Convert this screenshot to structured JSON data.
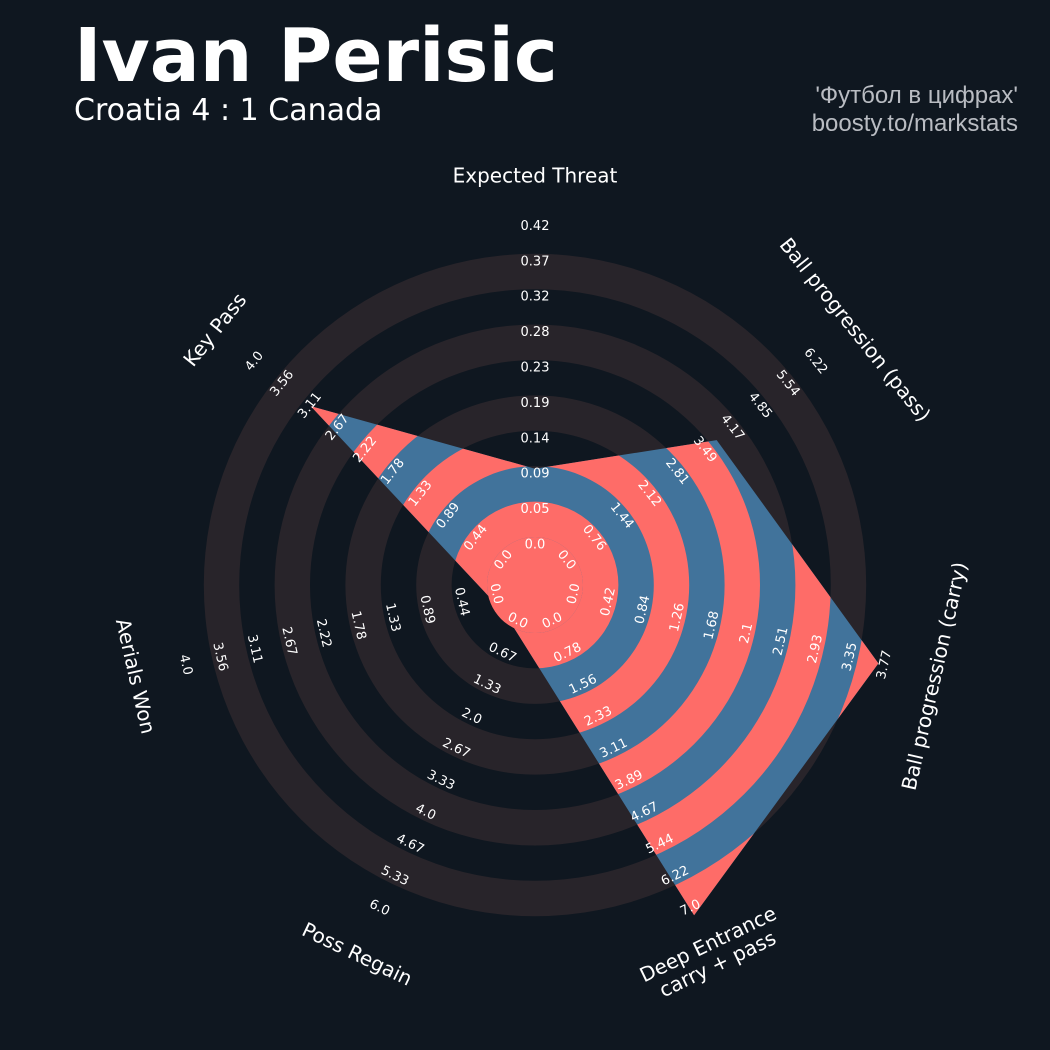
{
  "header": {
    "title": "Ivan Perisic",
    "subtitle": "Croatia 4 : 1 Canada",
    "credit_line1": "'Футбол в цифрах'",
    "credit_line2": "boosty.to/markstats"
  },
  "colors": {
    "background": "#0f1720",
    "ring_band": "#28242a",
    "player_fill": "#41739b",
    "player_band": "#fe6c68",
    "center": "#fe6c68",
    "text": "#ffffff",
    "credit": "#b9bcc2"
  },
  "chart_data": {
    "type": "radar",
    "title": "Ivan Perisic",
    "subtitle": "Croatia 4 : 1 Canada",
    "params": [
      {
        "name": "Expected Threat",
        "ticks": [
          "0.0",
          "0.05",
          "0.09",
          "0.14",
          "0.19",
          "0.23",
          "0.28",
          "0.32",
          "0.37",
          "0.42"
        ],
        "min": 0.0,
        "max": 0.42,
        "value": 0.09
      },
      {
        "name": "Ball progression (pass)",
        "ticks": [
          "0.0",
          "0.76",
          "1.44",
          "2.12",
          "2.81",
          "3.49",
          "4.17",
          "4.85",
          "5.54",
          "6.22"
        ],
        "min": 0.0,
        "max": 6.22,
        "value": 3.6
      },
      {
        "name": "Ball progression (carry)",
        "ticks": [
          "0.0",
          "0.42",
          "0.84",
          "1.26",
          "1.68",
          "2.1",
          "2.51",
          "2.93",
          "3.35",
          "3.77"
        ],
        "min": 0.0,
        "max": 3.77,
        "value": 3.6
      },
      {
        "name": "Deep Entrance\ncarry + pass",
        "ticks": [
          "0.0",
          "0.78",
          "1.56",
          "2.33",
          "3.11",
          "3.89",
          "4.67",
          "5.44",
          "6.22",
          "7.0"
        ],
        "min": 0.0,
        "max": 7.0,
        "value": 7.0
      },
      {
        "name": "Poss Regain",
        "ticks": [
          "0.0",
          "0.67",
          "1.33",
          "2.0",
          "2.67",
          "3.33",
          "4.0",
          "4.67",
          "5.33",
          "6.0"
        ],
        "min": 0.0,
        "max": 6.0,
        "value": 0.0
      },
      {
        "name": "Aerials Won",
        "ticks": [
          "0.0",
          "0.44",
          "0.89",
          "1.33",
          "1.78",
          "2.22",
          "2.67",
          "3.11",
          "3.56",
          "4.0"
        ],
        "min": 0.0,
        "max": 4.0,
        "value": 0.0
      },
      {
        "name": "Key Pass",
        "ticks": [
          "0.0",
          "0.44",
          "0.89",
          "1.33",
          "1.78",
          "2.22",
          "2.67",
          "3.11",
          "3.56",
          "4.0"
        ],
        "min": 0.0,
        "max": 4.0,
        "value": 3.0
      }
    ],
    "series": [
      {
        "values": [
          0.09,
          3.6,
          3.6,
          7.0,
          0.0,
          0.0,
          3.0
        ]
      }
    ]
  }
}
